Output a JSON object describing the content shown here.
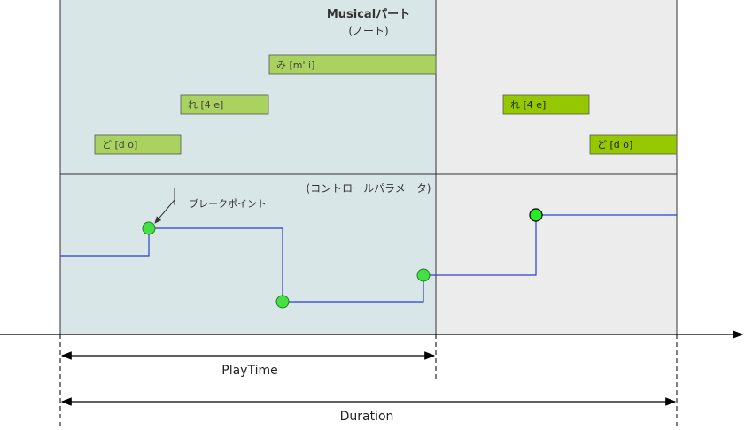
{
  "musical_part": {
    "title": "Musicalパート",
    "subtitle": "(ノート)"
  },
  "control_part": {
    "title": "(コントロールパラメータ)"
  },
  "breakpoint_label": "ブレークポイント",
  "notes": [
    {
      "label": "ど [d o]"
    },
    {
      "label": "れ [4 e]"
    },
    {
      "label": "み [m' i]"
    },
    {
      "label": "れ [4 e]"
    },
    {
      "label": "ど [d o]"
    }
  ],
  "dimensions": {
    "playtime": "PlayTime",
    "duration": "Duration"
  },
  "colors": {
    "played_bg": "#d9e6e8",
    "remaining_bg": "#ececec",
    "note_played": "#a9d25e",
    "note_remaining": "#96c800",
    "control_line": "#2f3fc8",
    "breakpoint": "#44e044"
  }
}
